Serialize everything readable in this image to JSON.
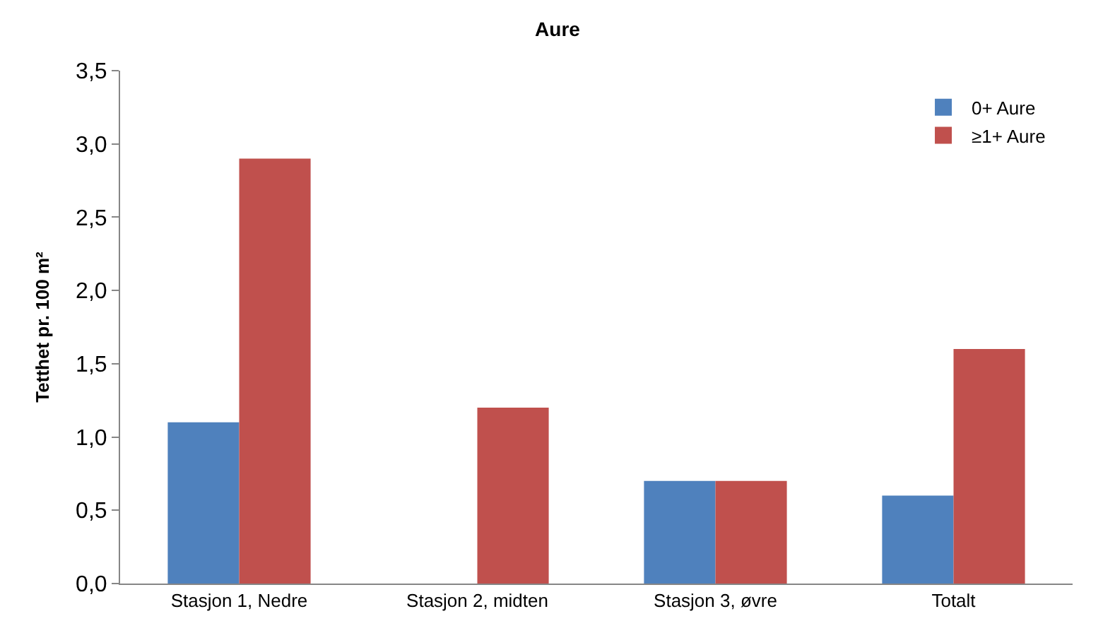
{
  "chart_data": {
    "type": "bar",
    "title": "Aure",
    "ylabel": "Tetthet pr. 100 m²",
    "categories": [
      "Stasjon 1, Nedre",
      "Stasjon 2, midten",
      "Stasjon 3, øvre",
      "Totalt"
    ],
    "series": [
      {
        "name": "0+ Aure",
        "color": "#4f81bd",
        "values": [
          1.1,
          0,
          0.7,
          0.6
        ]
      },
      {
        "name": "≥1+ Aure",
        "color": "#c0504d",
        "values": [
          2.9,
          1.2,
          0.7,
          1.6
        ]
      }
    ],
    "ylim": [
      0,
      3.5
    ],
    "yticks": [
      {
        "value": 0,
        "label": "0,0"
      },
      {
        "value": 0.5,
        "label": "0,5"
      },
      {
        "value": 1,
        "label": "1,0"
      },
      {
        "value": 1.5,
        "label": "1,5"
      },
      {
        "value": 2,
        "label": "2,0"
      },
      {
        "value": 2.5,
        "label": "2,5"
      },
      {
        "value": 3,
        "label": "3,0"
      },
      {
        "value": 3.5,
        "label": "3,5"
      }
    ],
    "grid": false,
    "legend": "top right"
  }
}
